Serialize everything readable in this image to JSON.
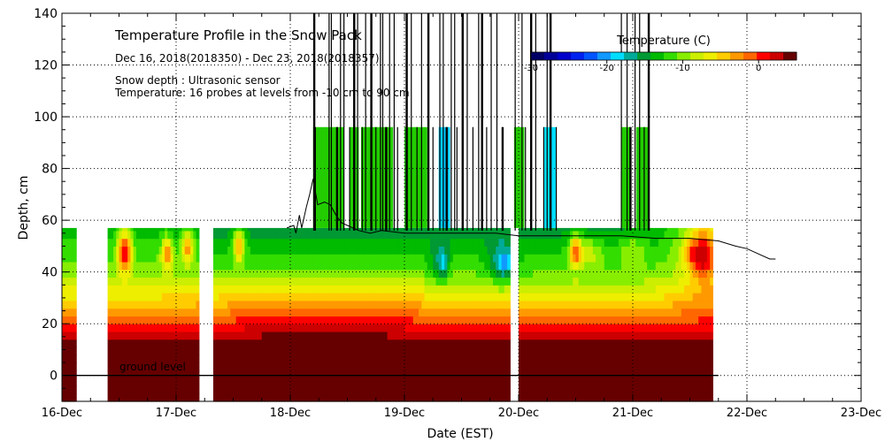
{
  "chart_data": {
    "type": "heatmap",
    "title": "Temperature Profile in the Snow Pack",
    "subtitle": "Dec 16, 2018(2018350) - Dec 23, 2018(2018357)",
    "notes": [
      "Snow depth : Ultrasonic sensor",
      "Temperature: 16 probes at levels from -10 cm to 90 cm"
    ],
    "xlabel": "Date (EST)",
    "ylabel": "Depth, cm",
    "xlim": [
      0,
      7
    ],
    "ylim": [
      -10,
      140
    ],
    "x_ticks": [
      {
        "v": 0,
        "label": "16-Dec"
      },
      {
        "v": 1,
        "label": "17-Dec"
      },
      {
        "v": 2,
        "label": "18-Dec"
      },
      {
        "v": 3,
        "label": "19-Dec"
      },
      {
        "v": 4,
        "label": "20-Dec"
      },
      {
        "v": 5,
        "label": "21-Dec"
      },
      {
        "v": 6,
        "label": "22-Dec"
      },
      {
        "v": 7,
        "label": "23-Dec"
      }
    ],
    "y_ticks": [
      {
        "v": 0,
        "label": "0"
      },
      {
        "v": 20,
        "label": "20"
      },
      {
        "v": 40,
        "label": "40"
      },
      {
        "v": 60,
        "label": "60"
      },
      {
        "v": 80,
        "label": "80"
      },
      {
        "v": 100,
        "label": "100"
      },
      {
        "v": 120,
        "label": "120"
      },
      {
        "v": 140,
        "label": "140"
      }
    ],
    "ground_label": "ground level",
    "colorbar": {
      "title": "Temperature (C)",
      "range": [
        -30,
        5
      ],
      "ticks": [
        {
          "v": -30,
          "label": "-30"
        },
        {
          "v": -20,
          "label": "-20"
        },
        {
          "v": -10,
          "label": "-10"
        },
        {
          "v": 0,
          "label": "0"
        }
      ],
      "colors": [
        "#000066",
        "#000099",
        "#0000cc",
        "#0022ee",
        "#0055ff",
        "#1199ff",
        "#00ddff",
        "#00aa99",
        "#009933",
        "#00bb00",
        "#33dd00",
        "#88ee00",
        "#ccee00",
        "#eeee00",
        "#ffcc00",
        "#ff9900",
        "#ff6600",
        "#ff0000",
        "#cc0000",
        "#660000"
      ]
    },
    "gaps": [
      [
        0.13,
        0.4
      ],
      [
        1.19,
        1.33
      ],
      [
        3.92,
        4.0
      ]
    ],
    "data_extent": [
      0,
      5.7
    ],
    "profile_top_cm": 57,
    "snow_depth": [
      [
        1.97,
        57
      ],
      [
        2.03,
        58
      ],
      [
        2.05,
        55
      ],
      [
        2.08,
        62
      ],
      [
        2.1,
        57
      ],
      [
        2.14,
        65
      ],
      [
        2.17,
        70
      ],
      [
        2.2,
        76
      ],
      [
        2.24,
        66
      ],
      [
        2.3,
        67
      ],
      [
        2.35,
        66
      ],
      [
        2.4,
        62
      ],
      [
        2.45,
        59
      ],
      [
        2.5,
        58
      ],
      [
        2.6,
        56
      ],
      [
        2.7,
        55
      ],
      [
        2.8,
        56
      ],
      [
        3.0,
        55
      ],
      [
        3.2,
        55
      ],
      [
        3.4,
        55
      ],
      [
        3.6,
        55
      ],
      [
        3.8,
        55
      ],
      [
        4.0,
        54
      ],
      [
        4.3,
        54
      ],
      [
        4.6,
        54
      ],
      [
        4.9,
        54
      ],
      [
        5.2,
        53
      ],
      [
        5.5,
        53
      ],
      [
        5.75,
        52
      ],
      [
        5.9,
        50
      ],
      [
        6.0,
        49
      ],
      [
        6.1,
        47
      ],
      [
        6.2,
        45
      ],
      [
        6.25,
        45
      ]
    ],
    "spikes": [
      2.21,
      2.22,
      2.34,
      2.36,
      2.41,
      2.44,
      2.47,
      2.52,
      2.56,
      2.59,
      2.63,
      2.66,
      2.71,
      2.75,
      2.79,
      2.81,
      2.84,
      2.87,
      2.91,
      2.94,
      3.02,
      3.06,
      3.11,
      3.15,
      3.21,
      3.25,
      3.31,
      3.34,
      3.37,
      3.41,
      3.44,
      3.46,
      3.51,
      3.55,
      3.6,
      3.65,
      3.68,
      3.72,
      3.76,
      3.81,
      3.86,
      3.97,
      4.03,
      4.06,
      4.11,
      4.15,
      4.22,
      4.25,
      4.28,
      4.33,
      4.9,
      4.95,
      4.98,
      5.02,
      5.06,
      5.1,
      5.14
    ],
    "saturated_bands": [
      [
        2.2,
        2.47
      ],
      [
        2.52,
        2.6
      ],
      [
        2.62,
        2.9
      ],
      [
        3.0,
        3.2
      ],
      [
        3.3,
        3.4
      ],
      [
        3.96,
        4.05
      ],
      [
        4.22,
        4.33
      ],
      [
        4.9,
        4.98
      ],
      [
        5.03,
        5.14
      ]
    ],
    "cold_pockets": [
      {
        "x": 3.3,
        "y": 46,
        "rx": 0.08,
        "ry": 9,
        "t": -16
      },
      {
        "x": 3.34,
        "y": 44,
        "rx": 0.04,
        "ry": 5,
        "t": -19
      },
      {
        "x": 3.85,
        "y": 46,
        "rx": 0.12,
        "ry": 9,
        "t": -17
      },
      {
        "x": 3.88,
        "y": 44,
        "rx": 0.05,
        "ry": 4,
        "t": -21
      },
      {
        "x": 4.6,
        "y": 47,
        "rx": 0.15,
        "ry": 6,
        "t": -8
      },
      {
        "x": 5.0,
        "y": 47,
        "rx": 0.12,
        "ry": 7,
        "t": -9
      }
    ],
    "warm_pockets": [
      {
        "x": 0.55,
        "y": 48,
        "rx": 0.06,
        "ry": 8,
        "t": 2
      },
      {
        "x": 0.92,
        "y": 47,
        "rx": 0.05,
        "ry": 6,
        "t": -2
      },
      {
        "x": 1.1,
        "y": 49,
        "rx": 0.05,
        "ry": 6,
        "t": -3
      },
      {
        "x": 1.55,
        "y": 50,
        "rx": 0.05,
        "ry": 6,
        "t": -3
      },
      {
        "x": 4.5,
        "y": 48,
        "rx": 0.05,
        "ry": 6,
        "t": 0
      },
      {
        "x": 5.55,
        "y": 47,
        "rx": 0.09,
        "ry": 6,
        "t": 1
      },
      {
        "x": 5.62,
        "y": 46,
        "rx": 0.09,
        "ry": 8,
        "t": 3
      }
    ]
  }
}
